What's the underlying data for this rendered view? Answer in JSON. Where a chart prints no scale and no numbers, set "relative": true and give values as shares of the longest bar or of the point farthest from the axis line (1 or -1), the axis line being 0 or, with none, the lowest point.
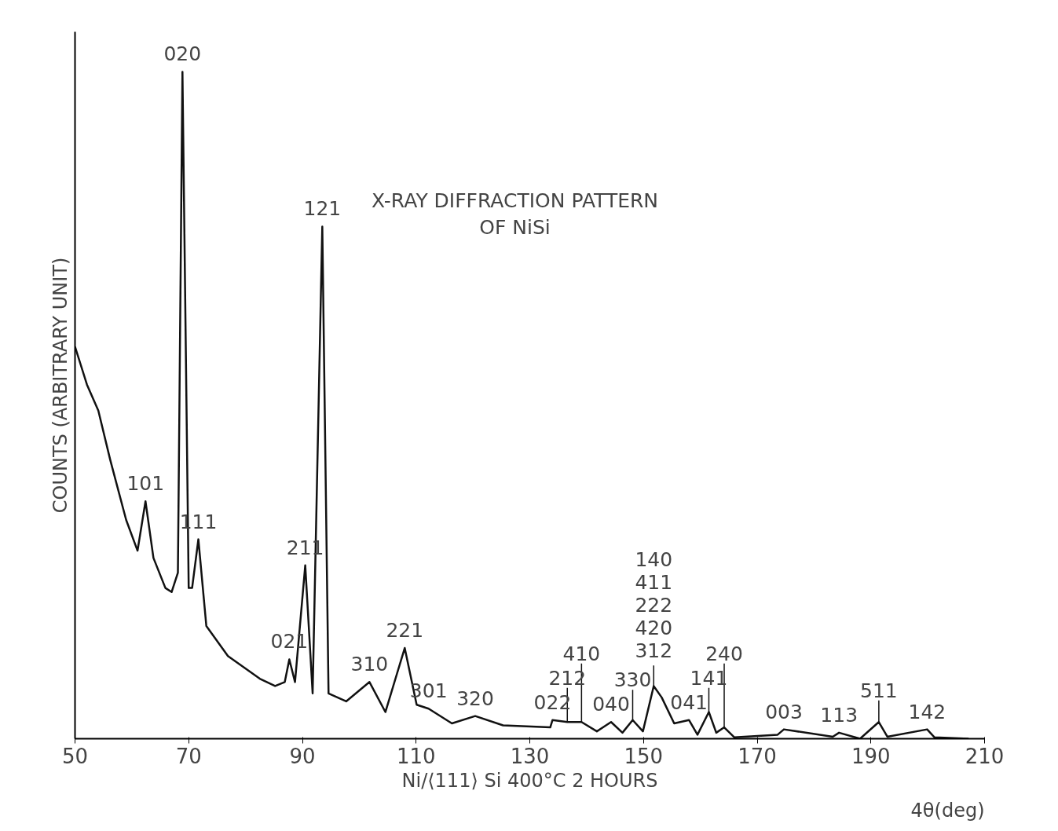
{
  "chart_data": {
    "type": "line",
    "relative": true,
    "title": "X-RAY DIFFRACTION PATTERN\nOF NiSi",
    "xlabel": "Ni/⟨111⟩ Si 400°C 2 HOURS",
    "ylabel": "COUNTS (ARBITRARY UNIT)",
    "xlim": [
      50,
      210
    ],
    "xticks": [
      50,
      70,
      90,
      110,
      130,
      150,
      170,
      190,
      210
    ],
    "grid": false,
    "tick_labels": "x",
    "marker": "none",
    "line_style": "solid",
    "x": [
      50,
      52.1,
      54.1,
      56.2,
      59.0,
      61.0,
      62.4,
      63.8,
      65.9,
      67.0,
      68.1,
      68.9,
      70.0,
      70.6,
      71.7,
      73.1,
      76.9,
      82.5,
      85.2,
      86.9,
      87.7,
      88.7,
      90.5,
      91.8,
      93.5,
      94.6,
      97.7,
      101.8,
      104.6,
      108.0,
      110.1,
      112.2,
      116.3,
      120.4,
      125.3,
      133.6,
      134.0,
      136.6,
      139.1,
      141.8,
      144.3,
      146.3,
      148.1,
      149.9,
      151.8,
      153.2,
      155.4,
      158.0,
      159.5,
      161.5,
      162.8,
      164.2,
      166.0,
      173.6,
      174.7,
      183.3,
      184.4,
      188.1,
      191.4,
      192.9,
      199.9,
      201.2,
      207.2
    ],
    "series": [
      {
        "color": "#111111",
        "values": [
          0.588,
          0.531,
          0.492,
          0.418,
          0.328,
          0.282,
          0.356,
          0.271,
          0.226,
          0.22,
          0.249,
          1.0,
          0.226,
          0.226,
          0.299,
          0.169,
          0.124,
          0.09,
          0.079,
          0.085,
          0.119,
          0.085,
          0.26,
          0.068,
          0.768,
          0.068,
          0.056,
          0.085,
          0.04,
          0.136,
          0.051,
          0.045,
          0.023,
          0.034,
          0.02,
          0.017,
          0.028,
          0.025,
          0.025,
          0.011,
          0.025,
          0.009,
          0.028,
          0.011,
          0.079,
          0.062,
          0.023,
          0.028,
          0.006,
          0.04,
          0.009,
          0.017,
          0.002,
          0.006,
          0.014,
          0.003,
          0.009,
          0,
          0.025,
          0.003,
          0.014,
          0.002,
          0
        ]
      }
    ],
    "annotations": [
      {
        "text": "020",
        "x": 68.9,
        "y": 1.0
      },
      {
        "text": "101",
        "x": 62.4,
        "y": 0.356
      },
      {
        "text": "111",
        "x": 71.7,
        "y": 0.299
      },
      {
        "text": "211",
        "x": 90.5,
        "y": 0.26
      },
      {
        "text": "121",
        "x": 93.5,
        "y": 0.768
      },
      {
        "text": "021",
        "x": 87.7,
        "y": 0.119
      },
      {
        "text": "310",
        "x": 101.8,
        "y": 0.085
      },
      {
        "text": "221",
        "x": 108.0,
        "y": 0.136
      },
      {
        "text": "301",
        "x": 112.2,
        "y": 0.045
      },
      {
        "text": "320",
        "x": 120.4,
        "y": 0.034
      },
      {
        "text": "022",
        "x": 134.0,
        "y": 0.028
      },
      {
        "text": "212",
        "x": 136.6,
        "y": 0.025
      },
      {
        "text": "410",
        "x": 139.1,
        "y": 0.025
      },
      {
        "text": "040",
        "x": 144.3,
        "y": 0.025
      },
      {
        "text": "330",
        "x": 148.1,
        "y": 0.028
      },
      {
        "text": "140\n411\n222\n420\n312",
        "x": 151.8,
        "y": 0.079
      },
      {
        "text": "041",
        "x": 158.0,
        "y": 0.028
      },
      {
        "text": "141",
        "x": 161.5,
        "y": 0.04
      },
      {
        "text": "240",
        "x": 164.2,
        "y": 0.017
      },
      {
        "text": "003",
        "x": 174.7,
        "y": 0.014
      },
      {
        "text": "113",
        "x": 184.4,
        "y": 0.009
      },
      {
        "text": "511",
        "x": 191.4,
        "y": 0.025
      },
      {
        "text": "142",
        "x": 199.9,
        "y": 0.014
      },
      "4θ(deg)"
    ]
  }
}
